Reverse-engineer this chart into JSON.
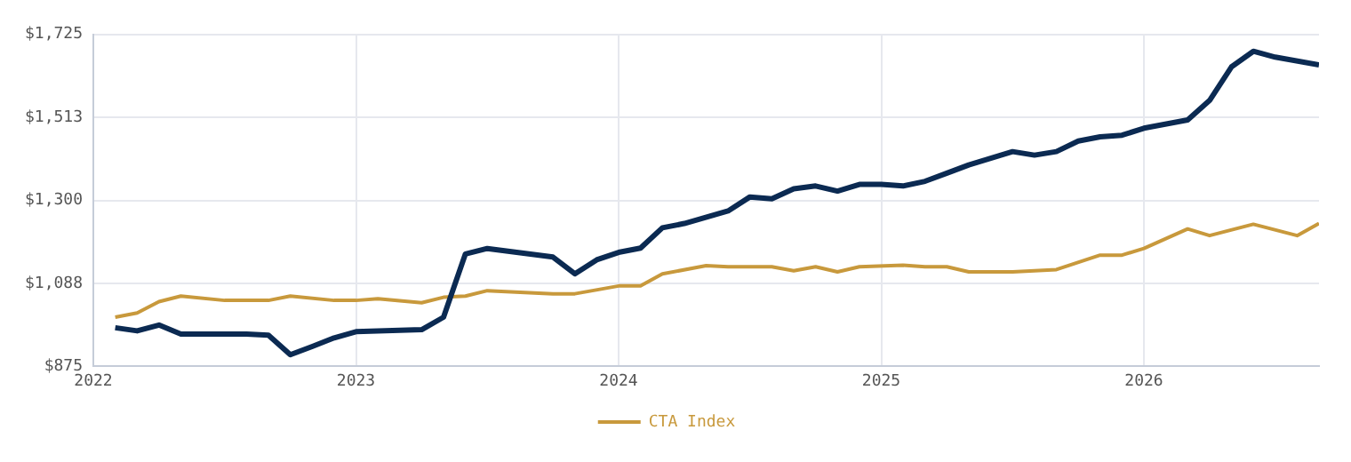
{
  "chart_data": {
    "type": "line",
    "xlim": [
      "2022-01",
      "2026-09"
    ],
    "xticks": [
      "2022",
      "2023",
      "2024",
      "2025",
      "2026"
    ],
    "ylim": [
      875,
      1725
    ],
    "yticks": [
      {
        "value": 875,
        "label": "$875"
      },
      {
        "value": 1087.5,
        "label": "$1,088"
      },
      {
        "value": 1300,
        "label": "$1,300"
      },
      {
        "value": 1512.5,
        "label": "$1,513"
      },
      {
        "value": 1725,
        "label": "$1,725"
      }
    ],
    "grid": true,
    "legend": "bottom",
    "marker": "none",
    "line_style": "solid",
    "series": [
      {
        "color": "#0b2a52",
        "x": [
          "2022-02",
          "2022-03",
          "2022-04",
          "2022-05",
          "2022-06",
          "2022-08",
          "2022-09",
          "2022-10",
          "2022-11",
          "2022-12",
          "2023-01",
          "2023-04",
          "2023-05",
          "2023-06",
          "2023-07",
          "2023-10",
          "2023-11",
          "2023-12",
          "2024-01",
          "2024-02",
          "2024-03",
          "2024-04",
          "2024-06",
          "2024-07",
          "2024-08",
          "2024-09",
          "2024-10",
          "2024-11",
          "2024-12",
          "2025-01",
          "2025-02",
          "2025-03",
          "2025-04",
          "2025-05",
          "2025-07",
          "2025-08",
          "2025-09",
          "2025-10",
          "2025-11",
          "2025-12",
          "2026-01",
          "2026-03",
          "2026-04",
          "2026-05",
          "2026-06",
          "2026-07",
          "2026-09"
        ],
        "values": [
          974,
          966,
          981,
          958,
          958,
          958,
          955,
          905,
          926,
          948,
          964,
          969,
          1001,
          1163,
          1177,
          1155,
          1112,
          1148,
          1167,
          1178,
          1230,
          1241,
          1273,
          1309,
          1304,
          1330,
          1337,
          1324,
          1341,
          1341,
          1337,
          1349,
          1370,
          1391,
          1425,
          1416,
          1425,
          1452,
          1463,
          1467,
          1485,
          1506,
          1556,
          1642,
          1682,
          1667,
          1647
        ]
      },
      {
        "name": "CTA Index",
        "color": "#c8993c",
        "x": [
          "2022-02",
          "2022-03",
          "2022-04",
          "2022-05",
          "2022-07",
          "2022-09",
          "2022-10",
          "2022-12",
          "2023-01",
          "2023-02",
          "2023-04",
          "2023-05",
          "2023-06",
          "2023-07",
          "2023-10",
          "2023-11",
          "2024-01",
          "2024-02",
          "2024-03",
          "2024-05",
          "2024-06",
          "2024-08",
          "2024-09",
          "2024-10",
          "2024-11",
          "2024-12",
          "2025-02",
          "2025-03",
          "2025-04",
          "2025-05",
          "2025-07",
          "2025-09",
          "2025-11",
          "2025-12",
          "2026-01",
          "2026-03",
          "2026-04",
          "2026-06",
          "2026-08",
          "2026-09"
        ],
        "values": [
          1001,
          1012,
          1041,
          1055,
          1044,
          1044,
          1055,
          1044,
          1044,
          1048,
          1038,
          1052,
          1055,
          1069,
          1061,
          1061,
          1081,
          1081,
          1112,
          1133,
          1130,
          1130,
          1120,
          1130,
          1117,
          1130,
          1134,
          1130,
          1130,
          1117,
          1117,
          1123,
          1160,
          1160,
          1177,
          1227,
          1210,
          1239,
          1210,
          1241
        ]
      }
    ]
  }
}
